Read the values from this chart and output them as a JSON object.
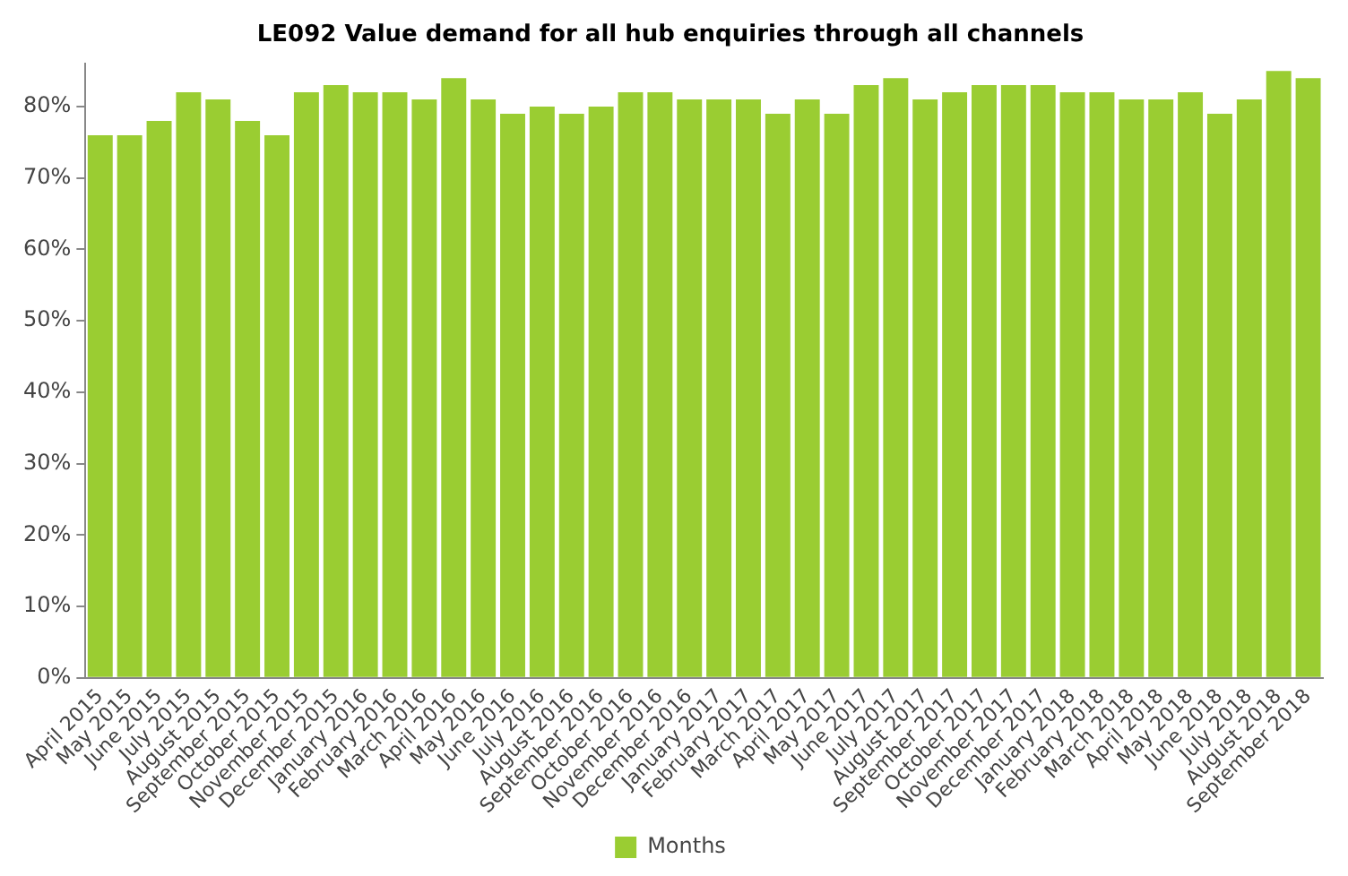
{
  "chart_data": {
    "type": "bar",
    "title": "LE092 Value demand for all hub enquiries through all channels",
    "categories": [
      "April 2015",
      "May 2015",
      "June 2015",
      "July 2015",
      "August 2015",
      "September 2015",
      "October 2015",
      "November 2015",
      "December 2015",
      "January 2016",
      "February 2016",
      "March 2016",
      "April 2016",
      "May 2016",
      "June 2016",
      "July 2016",
      "August 2016",
      "September 2016",
      "October 2016",
      "November 2016",
      "December 2016",
      "January 2017",
      "February 2017",
      "March 2017",
      "April 2017",
      "May 2017",
      "June 2017",
      "July 2017",
      "August 2017",
      "September 2017",
      "October 2017",
      "November 2017",
      "December 2017",
      "January 2018",
      "February 2018",
      "March 2018",
      "April 2018",
      "May 2018",
      "June 2018",
      "July 2018",
      "August 2018",
      "September 2018"
    ],
    "series": [
      {
        "name": "Months",
        "color": "#9acd32",
        "values": [
          76,
          76,
          78,
          82,
          81,
          78,
          76,
          82,
          83,
          82,
          82,
          81,
          84,
          81,
          79,
          80,
          79,
          80,
          82,
          82,
          81,
          81,
          81,
          79,
          81,
          79,
          83,
          84,
          81,
          82,
          83,
          83,
          83,
          82,
          82,
          81,
          81,
          82,
          79,
          81,
          85,
          84
        ]
      }
    ],
    "ylim": [
      0,
      86
    ],
    "yticks": [
      {
        "value": 0,
        "label": "0%"
      },
      {
        "value": 10,
        "label": "10%"
      },
      {
        "value": 20,
        "label": "20%"
      },
      {
        "value": 30,
        "label": "30%"
      },
      {
        "value": 40,
        "label": "40%"
      },
      {
        "value": 50,
        "label": "50%"
      },
      {
        "value": 60,
        "label": "60%"
      },
      {
        "value": 70,
        "label": "70%"
      },
      {
        "value": 80,
        "label": "80%"
      }
    ],
    "grid": false,
    "legend": "bottom"
  }
}
